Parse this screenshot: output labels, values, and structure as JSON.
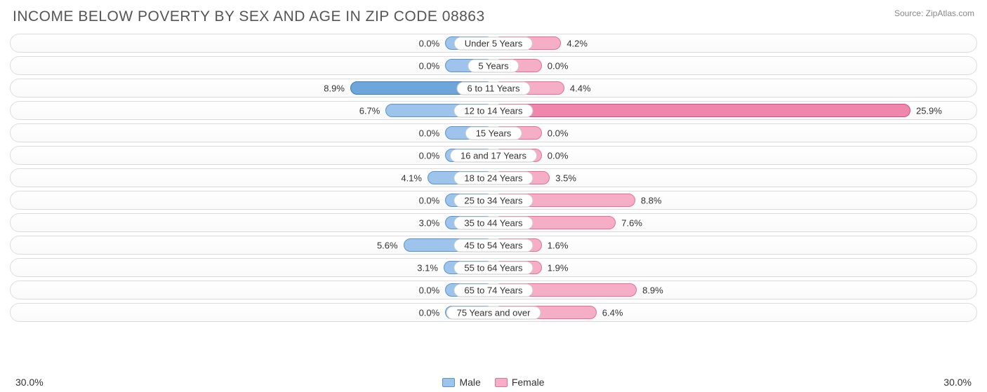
{
  "title": "INCOME BELOW POVERTY BY SEX AND AGE IN ZIP CODE 08863",
  "source": "Source: ZipAtlas.com",
  "axis_max": 30.0,
  "axis_label_left": "30.0%",
  "axis_label_right": "30.0%",
  "min_bar_pct": 3.0,
  "colors": {
    "male_fill": "#9ec4eb",
    "male_border": "#5a93d0",
    "male_highlight_fill": "#6ea6db",
    "male_highlight_border": "#3e78b8",
    "female_fill": "#f5aec6",
    "female_border": "#e76e9b",
    "female_highlight_fill": "#ef87ac",
    "female_highlight_border": "#d84e82",
    "track_border": "#dddddd",
    "text": "#333333",
    "title_text": "#555555"
  },
  "legend": {
    "male": "Male",
    "female": "Female"
  },
  "rows": [
    {
      "label": "Under 5 Years",
      "male": 0.0,
      "female": 4.2,
      "male_hl": false,
      "female_hl": false
    },
    {
      "label": "5 Years",
      "male": 0.0,
      "female": 0.0,
      "male_hl": false,
      "female_hl": false
    },
    {
      "label": "6 to 11 Years",
      "male": 8.9,
      "female": 4.4,
      "male_hl": true,
      "female_hl": false
    },
    {
      "label": "12 to 14 Years",
      "male": 6.7,
      "female": 25.9,
      "male_hl": false,
      "female_hl": true
    },
    {
      "label": "15 Years",
      "male": 0.0,
      "female": 0.0,
      "male_hl": false,
      "female_hl": false
    },
    {
      "label": "16 and 17 Years",
      "male": 0.0,
      "female": 0.0,
      "male_hl": false,
      "female_hl": false
    },
    {
      "label": "18 to 24 Years",
      "male": 4.1,
      "female": 3.5,
      "male_hl": false,
      "female_hl": false
    },
    {
      "label": "25 to 34 Years",
      "male": 0.0,
      "female": 8.8,
      "male_hl": false,
      "female_hl": false
    },
    {
      "label": "35 to 44 Years",
      "male": 3.0,
      "female": 7.6,
      "male_hl": false,
      "female_hl": false
    },
    {
      "label": "45 to 54 Years",
      "male": 5.6,
      "female": 1.6,
      "male_hl": false,
      "female_hl": false
    },
    {
      "label": "55 to 64 Years",
      "male": 3.1,
      "female": 1.9,
      "male_hl": false,
      "female_hl": false
    },
    {
      "label": "65 to 74 Years",
      "male": 0.0,
      "female": 8.9,
      "male_hl": false,
      "female_hl": false
    },
    {
      "label": "75 Years and over",
      "male": 0.0,
      "female": 6.4,
      "male_hl": false,
      "female_hl": false
    }
  ]
}
